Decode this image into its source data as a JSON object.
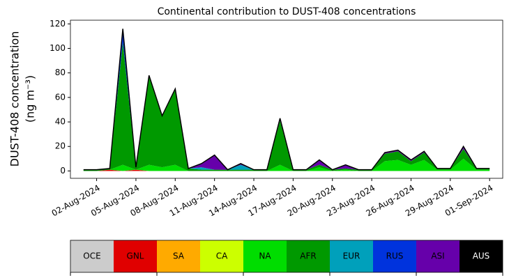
{
  "chart_data": {
    "type": "stacked_area",
    "title": "Continental contribution to DUST-408 concentrations",
    "ylabel": [
      "DUST-408 concentration",
      "(ng m⁻³)"
    ],
    "x": [
      "2024-08-01",
      "2024-08-02",
      "2024-08-03",
      "2024-08-04",
      "2024-08-05",
      "2024-08-06",
      "2024-08-07",
      "2024-08-08",
      "2024-08-09",
      "2024-08-10",
      "2024-08-11",
      "2024-08-12",
      "2024-08-13",
      "2024-08-14",
      "2024-08-15",
      "2024-08-16",
      "2024-08-17",
      "2024-08-18",
      "2024-08-19",
      "2024-08-20",
      "2024-08-21",
      "2024-08-22",
      "2024-08-23",
      "2024-08-24",
      "2024-08-25",
      "2024-08-26",
      "2024-08-27",
      "2024-08-28",
      "2024-08-29",
      "2024-08-30",
      "2024-08-31",
      "2024-09-01"
    ],
    "series": [
      {
        "name": "OCE",
        "color": "#cccccc",
        "values": [
          0,
          0,
          0,
          0,
          0,
          0,
          0,
          0,
          0,
          0,
          0,
          0,
          0,
          0,
          0,
          0,
          0,
          0,
          0,
          0,
          0,
          0,
          0,
          0,
          0,
          0,
          0,
          0,
          0,
          0,
          0,
          0
        ]
      },
      {
        "name": "GNL",
        "color": "#e00000",
        "values": [
          0,
          0,
          1,
          0,
          1,
          0,
          0,
          0,
          0,
          0,
          0,
          0,
          0,
          0,
          0,
          0,
          0,
          0,
          0,
          0,
          0,
          0,
          0,
          0,
          0,
          0,
          0,
          0,
          0,
          0,
          0,
          0
        ]
      },
      {
        "name": "SA",
        "color": "#ffaa00",
        "values": [
          0,
          0,
          0,
          0,
          0,
          0,
          0,
          0,
          0,
          0,
          0,
          0,
          0,
          0,
          0,
          0,
          0,
          0,
          0,
          0,
          0,
          0,
          0,
          0,
          0,
          0,
          0,
          0,
          0,
          0,
          0,
          0
        ]
      },
      {
        "name": "CA",
        "color": "#ccff00",
        "values": [
          0,
          0,
          0,
          0,
          0,
          0,
          0,
          0,
          0,
          0,
          0,
          0,
          0,
          0,
          0,
          0,
          0,
          0,
          0,
          0,
          0,
          0,
          0,
          0,
          0,
          0,
          0,
          0,
          0,
          0,
          0,
          0
        ]
      },
      {
        "name": "NA",
        "color": "#00dd00",
        "values": [
          0,
          0,
          0,
          5,
          0,
          5,
          3,
          5,
          0,
          0,
          0,
          0,
          0,
          0,
          0,
          5,
          0,
          0,
          3,
          0,
          1,
          0,
          0,
          8,
          9,
          5,
          9,
          1,
          1,
          10,
          1,
          1
        ]
      },
      {
        "name": "AFR",
        "color": "#009900",
        "values": [
          1,
          1,
          1,
          100,
          2,
          73,
          42,
          62,
          2,
          1,
          1,
          1,
          1,
          1,
          1,
          36,
          1,
          1,
          2,
          1,
          1,
          1,
          1,
          6,
          7,
          3,
          6,
          1,
          1,
          8,
          1,
          1
        ]
      },
      {
        "name": "EUR",
        "color": "#00a0bb",
        "values": [
          0,
          0,
          0,
          0,
          0,
          0,
          0,
          0,
          0,
          2,
          0,
          0,
          4,
          0,
          0,
          0,
          0,
          0,
          0,
          0,
          0,
          0,
          0,
          0,
          0,
          0,
          0,
          0,
          0,
          0,
          0,
          0
        ]
      },
      {
        "name": "RUS",
        "color": "#0033dd",
        "values": [
          0,
          0,
          0,
          8,
          0,
          0,
          0,
          0,
          0,
          0,
          0,
          0,
          0,
          0,
          0,
          0,
          0,
          0,
          0,
          0,
          0,
          0,
          0,
          0,
          0,
          0,
          0,
          0,
          0,
          0,
          0,
          0
        ]
      },
      {
        "name": "ASI",
        "color": "#6600aa",
        "values": [
          0,
          0,
          0,
          3,
          0,
          0,
          0,
          0,
          0,
          3,
          12,
          0,
          1,
          0,
          0,
          2,
          0,
          0,
          4,
          0,
          3,
          0,
          0,
          1,
          1,
          1,
          1,
          0,
          0,
          2,
          0,
          0
        ]
      },
      {
        "name": "AUS",
        "color": "#000000",
        "values": [
          0,
          0,
          0,
          0,
          0,
          0,
          0,
          0,
          0,
          0,
          0,
          0,
          0,
          0,
          0,
          0,
          0,
          0,
          0,
          0,
          0,
          0,
          0,
          0,
          0,
          0,
          0,
          0,
          0,
          0,
          0,
          0
        ]
      }
    ],
    "xlim": [
      "2024-07-31",
      "2024-09-02"
    ],
    "xticks": [
      {
        "value": "2024-08-02",
        "label": "02-Aug-2024"
      },
      {
        "value": "2024-08-05",
        "label": "05-Aug-2024"
      },
      {
        "value": "2024-08-08",
        "label": "08-Aug-2024"
      },
      {
        "value": "2024-08-11",
        "label": "11-Aug-2024"
      },
      {
        "value": "2024-08-14",
        "label": "14-Aug-2024"
      },
      {
        "value": "2024-08-17",
        "label": "17-Aug-2024"
      },
      {
        "value": "2024-08-20",
        "label": "20-Aug-2024"
      },
      {
        "value": "2024-08-23",
        "label": "23-Aug-2024"
      },
      {
        "value": "2024-08-26",
        "label": "26-Aug-2024"
      },
      {
        "value": "2024-08-29",
        "label": "29-Aug-2024"
      },
      {
        "value": "2024-09-01",
        "label": "01-Sep-2024"
      }
    ],
    "ylim": [
      -6,
      123
    ],
    "yticks": [
      0,
      20,
      40,
      60,
      80,
      100,
      120
    ]
  }
}
